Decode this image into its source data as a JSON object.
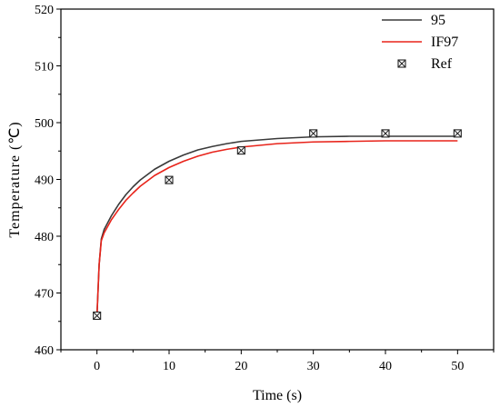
{
  "chart_data": {
    "type": "line",
    "title": "",
    "xlabel": "Time (s)",
    "ylabel": "Temperature (℃)",
    "xlim": [
      -5,
      55
    ],
    "ylim": [
      460,
      520
    ],
    "x_ticks": [
      0,
      10,
      20,
      30,
      40,
      50
    ],
    "y_ticks": [
      460,
      470,
      480,
      490,
      500,
      510,
      520
    ],
    "x_tick_labels": [
      "0",
      "10",
      "20",
      "30",
      "40",
      "50"
    ],
    "y_tick_labels": [
      "460",
      "470",
      "480",
      "490",
      "500",
      "510",
      "520"
    ],
    "grid": false,
    "legend_position": "top-right",
    "series": [
      {
        "name": "95",
        "kind": "line",
        "color": "#3a3a3a",
        "x": [
          0,
          0.3,
          0.6,
          1,
          2,
          3,
          4,
          5,
          6,
          8,
          10,
          12,
          14,
          16,
          18,
          20,
          25,
          30,
          35,
          40,
          45,
          50
        ],
        "y": [
          466.0,
          475.0,
          479.5,
          481.2,
          483.6,
          485.6,
          487.3,
          488.7,
          489.9,
          491.8,
          493.2,
          494.3,
          495.2,
          495.8,
          496.3,
          496.7,
          497.2,
          497.5,
          497.6,
          497.6,
          497.6,
          497.6
        ]
      },
      {
        "name": "IF97",
        "kind": "line",
        "color": "#e8231a",
        "x": [
          0,
          0.3,
          0.6,
          1,
          2,
          3,
          4,
          5,
          6,
          8,
          10,
          12,
          14,
          16,
          18,
          20,
          25,
          30,
          35,
          40,
          45,
          50
        ],
        "y": [
          466.0,
          475.0,
          479.2,
          480.6,
          482.9,
          484.7,
          486.3,
          487.6,
          488.8,
          490.7,
          492.1,
          493.2,
          494.1,
          494.8,
          495.3,
          495.7,
          496.3,
          496.6,
          496.7,
          496.8,
          496.8,
          496.8
        ]
      },
      {
        "name": "Ref",
        "kind": "marker",
        "color": "#222222",
        "x": [
          0,
          10,
          20,
          30,
          40,
          50
        ],
        "y": [
          466.0,
          489.9,
          495.1,
          498.1,
          498.1,
          498.1
        ]
      }
    ]
  }
}
